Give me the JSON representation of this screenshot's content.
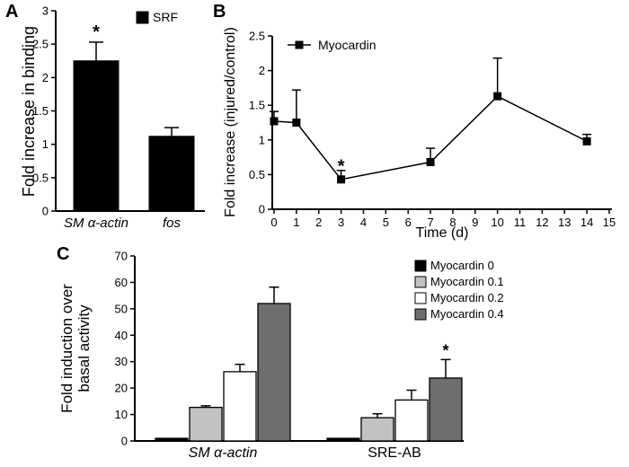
{
  "figure": {
    "background": "#ffffff",
    "text_color": "#000000"
  },
  "panels": {
    "a": {
      "label": "A"
    },
    "b": {
      "label": "B"
    },
    "c": {
      "label": "C"
    }
  },
  "chart_data": [
    {
      "id": "a",
      "type": "bar",
      "title": "",
      "ylabel": "Fold increase in binding",
      "xlabel": "",
      "ylim": [
        0,
        3
      ],
      "yticks": [
        0,
        0.5,
        1,
        1.5,
        2,
        2.5,
        3
      ],
      "categories": [
        "SM α-actin",
        "fos"
      ],
      "categories_italic": [
        true,
        true
      ],
      "values": [
        2.25,
        1.12
      ],
      "errors_up": [
        0.28,
        0.13
      ],
      "bar_color": "#000000",
      "grid": false,
      "legend": [
        {
          "label": "SRF",
          "color": "#000000"
        }
      ],
      "legend_position": "top-right",
      "annotations": [
        {
          "text": "*",
          "category_index": 0
        }
      ]
    },
    {
      "id": "b",
      "type": "line",
      "title": "",
      "ylabel": "Fold increase (injured/control)",
      "xlabel": "Time (d)",
      "ylim": [
        0,
        2.5
      ],
      "yticks": [
        0,
        0.5,
        1,
        1.5,
        2,
        2.5
      ],
      "xlim": [
        0,
        15
      ],
      "xticks": [
        0,
        1,
        2,
        3,
        4,
        5,
        6,
        7,
        8,
        9,
        10,
        11,
        12,
        13,
        14,
        15
      ],
      "grid": false,
      "series": [
        {
          "name": "Myocardin",
          "color": "#000000",
          "marker": "square",
          "x": [
            0,
            1,
            3,
            7,
            10,
            14
          ],
          "y": [
            1.27,
            1.25,
            0.43,
            0.68,
            1.63,
            0.98
          ],
          "errors_up": [
            0.14,
            0.47,
            0.13,
            0.2,
            0.55,
            0.1
          ]
        }
      ],
      "legend_position": "top-left",
      "annotations": [
        {
          "text": "*",
          "x": 3,
          "y": 0.63
        }
      ]
    },
    {
      "id": "c",
      "type": "grouped_bar",
      "title": "",
      "ylabel": "Fold induction over basal activity",
      "ylabel_lines": [
        "Fold induction over",
        "basal activity"
      ],
      "xlabel": "",
      "ylim": [
        0,
        70
      ],
      "yticks": [
        0,
        10,
        20,
        30,
        40,
        50,
        60,
        70
      ],
      "categories": [
        "SM α-actin",
        "SRE-AB"
      ],
      "categories_italic": [
        true,
        false
      ],
      "grid": false,
      "series": [
        {
          "name": "Myocardin 0",
          "color": "#000000",
          "values": [
            1,
            1
          ],
          "errors_up": [
            0,
            0
          ]
        },
        {
          "name": "Myocardin 0.1",
          "color": "#c2c2c2",
          "values": [
            12.7,
            8.8
          ],
          "errors_up": [
            0.6,
            1.5
          ]
        },
        {
          "name": "Myocardin 0.2",
          "color": "#ffffff",
          "values": [
            26.2,
            15.5
          ],
          "errors_up": [
            2.8,
            3.7
          ]
        },
        {
          "name": "Myocardin 0.4",
          "color": "#6e6e6e",
          "values": [
            52,
            23.8
          ],
          "errors_up": [
            6.2,
            7.0
          ]
        }
      ],
      "legend_position": "top-right",
      "annotations": [
        {
          "text": "*",
          "category_index": 1,
          "series_index": 3
        }
      ]
    }
  ]
}
